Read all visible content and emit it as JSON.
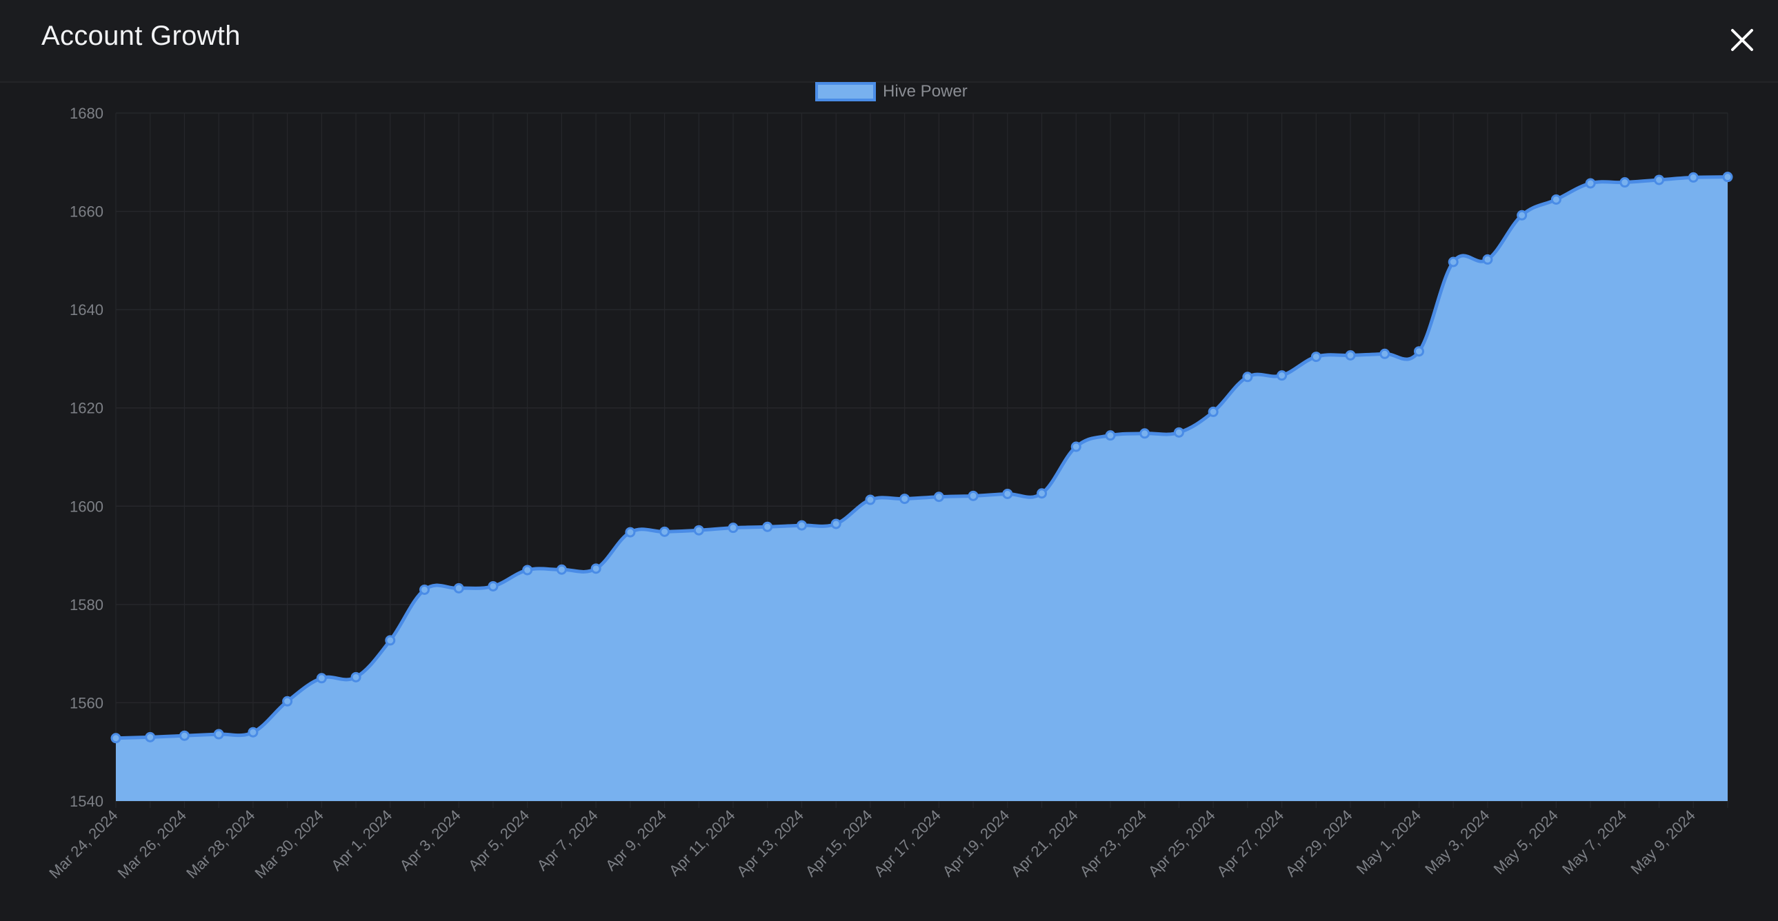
{
  "modal": {
    "title": "Account Growth",
    "close_icon": "close-icon"
  },
  "colors": {
    "background": "#191a1d",
    "fill": "#78b1ef",
    "line": "#4a8ce6",
    "grid": "#26272b",
    "tick_text": "#7d8086"
  },
  "chart_data": {
    "type": "area",
    "legend": {
      "position": "top-center",
      "entries": [
        "Hive Power"
      ]
    },
    "grid": true,
    "ylim": [
      1540,
      1680
    ],
    "yticks": [
      1540,
      1560,
      1580,
      1600,
      1620,
      1640,
      1660,
      1680
    ],
    "xtick_labels": [
      "Mar 24, 2024",
      "Mar 26, 2024",
      "Mar 28, 2024",
      "Mar 30, 2024",
      "Apr 1, 2024",
      "Apr 3, 2024",
      "Apr 5, 2024",
      "Apr 7, 2024",
      "Apr 9, 2024",
      "Apr 11, 2024",
      "Apr 13, 2024",
      "Apr 15, 2024",
      "Apr 17, 2024",
      "Apr 19, 2024",
      "Apr 21, 2024",
      "Apr 23, 2024",
      "Apr 25, 2024",
      "Apr 27, 2024",
      "Apr 29, 2024",
      "May 1, 2024",
      "May 3, 2024",
      "May 5, 2024",
      "May 7, 2024",
      "May 9, 2024"
    ],
    "series": [
      {
        "name": "Hive Power",
        "values": [
          1552.8,
          1553.0,
          1553.3,
          1553.6,
          1554.0,
          1560.3,
          1565.0,
          1565.2,
          1572.7,
          1583.0,
          1583.3,
          1583.7,
          1587.0,
          1587.1,
          1587.3,
          1594.7,
          1594.8,
          1595.1,
          1595.6,
          1595.8,
          1596.1,
          1596.4,
          1601.3,
          1601.5,
          1601.9,
          1602.1,
          1602.5,
          1602.6,
          1612.1,
          1614.4,
          1614.8,
          1615.0,
          1619.2,
          1626.3,
          1626.6,
          1630.4,
          1630.7,
          1631.0,
          1631.5,
          1649.7,
          1650.2,
          1659.2,
          1662.4,
          1665.7,
          1665.9,
          1666.4,
          1666.9,
          1667.0
        ]
      }
    ]
  }
}
